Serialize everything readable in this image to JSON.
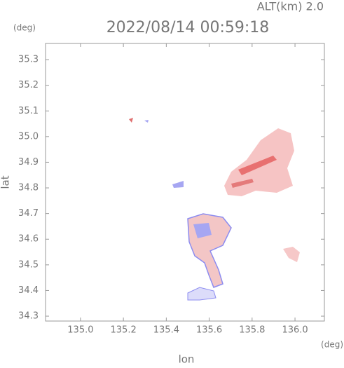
{
  "chart_data": {
    "type": "map",
    "title": "2022/08/14 00:59:18",
    "subtitle": "ALT(km) 2.0",
    "y_unit": "(deg)",
    "x_unit": "(deg)",
    "y_label": "lat",
    "x_label": "lon",
    "xlim": [
      134.837,
      136.137
    ],
    "ylim": [
      34.281,
      35.363
    ],
    "xticks": [
      {
        "value": 135.0,
        "label": "135.0"
      },
      135.2,
      135.4,
      135.6,
      135.8,
      {
        "value": 136.0,
        "label": "136.0"
      }
    ],
    "yticks": [
      34.3,
      34.4,
      34.5,
      34.6,
      34.7,
      34.8,
      34.9,
      {
        "value": 35.0,
        "label": "35.0"
      },
      35.1,
      35.2,
      35.3
    ],
    "grid": false
  }
}
